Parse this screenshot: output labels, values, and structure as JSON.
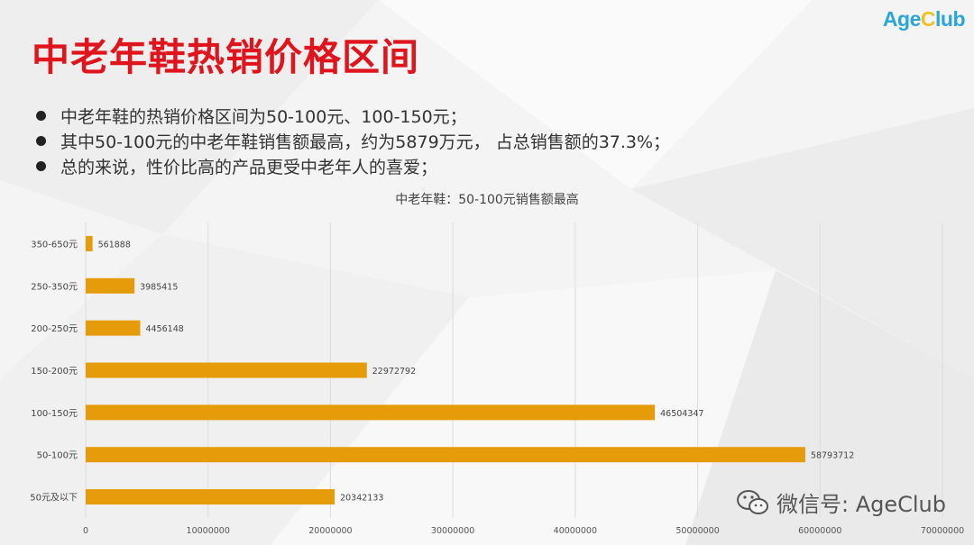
{
  "brand": {
    "part1": "Age",
    "part2": "C",
    "part3": "lub"
  },
  "title": "中老年鞋热销价格区间",
  "bullets": [
    "中老年鞋的热销价格区间为50-100元、100-150元；",
    "其中50-100元的中老年鞋销售额最高，约为5879万元， 占总销售额的37.3%；",
    "总的来说，性价比高的产品更受中老年人的喜爱；"
  ],
  "watermark": {
    "text": "微信号: AgeClub",
    "icon": "wechat-icon"
  },
  "colors": {
    "bar": "#e69b0a",
    "title": "#e0141c",
    "grid": "#dcdcdc"
  },
  "chart_data": {
    "type": "bar",
    "orientation": "horizontal",
    "title": "中老年鞋：50-100元销售额最高",
    "categories": [
      "350-650元",
      "250-350元",
      "200-250元",
      "150-200元",
      "100-150元",
      "50-100元",
      "50元及以下"
    ],
    "values": [
      561888,
      3985415,
      4456148,
      22972792,
      46504347,
      58793712,
      20342133
    ],
    "xlim": [
      0,
      70000000
    ],
    "xticks": [
      "0",
      "10000000",
      "20000000",
      "30000000",
      "40000000",
      "50000000",
      "60000000",
      "70000000"
    ],
    "grid": true,
    "data_labels": true
  }
}
